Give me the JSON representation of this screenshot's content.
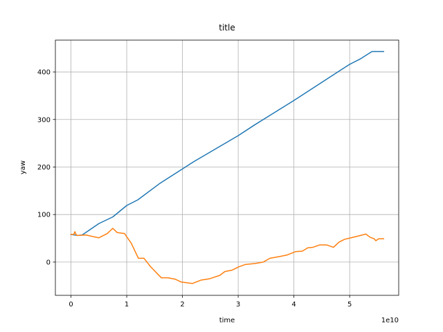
{
  "chart_data": {
    "type": "line",
    "title": "title",
    "xlabel": "time",
    "ylabel": "yaw",
    "x_offset_label": "1e10",
    "grid": true,
    "xlim": [
      -2800000000.0,
      58800000000.0
    ],
    "ylim": [
      -70,
      467
    ],
    "xticks": [
      {
        "value": 0,
        "label": "0"
      },
      {
        "value": 10000000000.0,
        "label": "1"
      },
      {
        "value": 20000000000.0,
        "label": "2"
      },
      {
        "value": 30000000000.0,
        "label": "3"
      },
      {
        "value": 40000000000.0,
        "label": "4"
      },
      {
        "value": 50000000000.0,
        "label": "5"
      }
    ],
    "yticks": [
      0,
      100,
      200,
      300,
      400
    ],
    "series": [
      {
        "color": "#1f77b4",
        "x": [
          0,
          1200000000.0,
          2000000000.0,
          5000000000.0,
          7500000000.0,
          10000000000.0,
          12000000000.0,
          16000000000.0,
          20000000000.0,
          22000000000.0,
          30000000000.0,
          33000000000.0,
          40000000000.0,
          48000000000.0,
          50000000000.0,
          52000000000.0,
          54000000000.0,
          56100000000.0
        ],
        "values": [
          58,
          56,
          57,
          81,
          95,
          119,
          131,
          166,
          196,
          211,
          266,
          289,
          340,
          401,
          416,
          428,
          443,
          443
        ]
      },
      {
        "color": "#ff7f0e",
        "x": [
          0,
          500000000.0,
          700000000.0,
          1000000000.0,
          2700000000.0,
          5000000000.0,
          6500000000.0,
          7500000000.0,
          8300000000.0,
          9600000000.0,
          10800000000.0,
          12100000000.0,
          13100000000.0,
          14300000000.0,
          16200000000.0,
          17400000000.0,
          18700000000.0,
          19800000000.0,
          21800000000.0,
          23300000000.0,
          24900000000.0,
          26700000000.0,
          27600000000.0,
          28900000000.0,
          30100000000.0,
          31300000000.0,
          33000000000.0,
          34500000000.0,
          35700000000.0,
          37600000000.0,
          38800000000.0,
          40300000000.0,
          41500000000.0,
          42500000000.0,
          43400000000.0,
          44600000000.0,
          45900000000.0,
          47100000000.0,
          48100000000.0,
          49100000000.0,
          50200000000.0,
          51600000000.0,
          52900000000.0,
          53700000000.0,
          54400000000.0,
          54700000000.0,
          55200000000.0,
          56100000000.0
        ],
        "values": [
          58,
          58,
          64,
          56,
          57,
          51,
          60,
          71,
          62,
          60,
          40,
          8,
          8,
          -10,
          -33,
          -33,
          -36,
          -42,
          -45,
          -38,
          -35,
          -28,
          -20,
          -17,
          -10,
          -5,
          -3,
          0,
          8,
          12,
          15,
          22,
          23,
          30,
          31,
          36,
          36,
          31,
          42,
          48,
          51,
          55,
          59,
          52,
          49,
          45,
          49,
          49
        ]
      }
    ]
  }
}
